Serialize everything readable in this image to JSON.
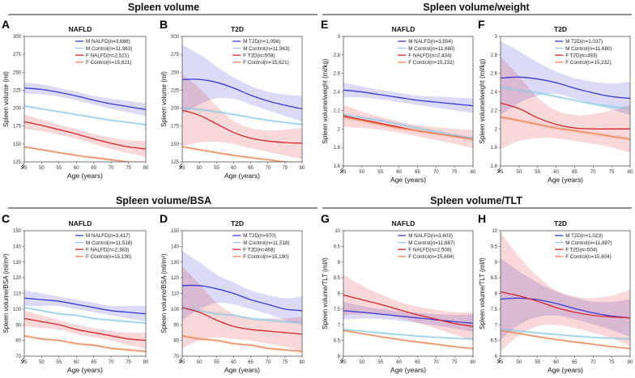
{
  "figure": {
    "section_titles": [
      "Spleen volume",
      "Spleen volume/weight",
      "Spleen volume/BSA",
      "Spleen volume/TLT"
    ],
    "colors": {
      "m_case": "#3a3ad8",
      "m_control": "#8ecde6",
      "f_case": "#d8262b",
      "f_control": "#ee8552"
    }
  },
  "chart_data": [
    {
      "panel": "A",
      "title": "NAFLD",
      "type": "line",
      "xlabel": "Age (years)",
      "ylabel": "Spleen volume (ml)",
      "xlim": [
        45,
        80
      ],
      "ylim": [
        125,
        300
      ],
      "xticks": [
        45,
        50,
        55,
        60,
        65,
        70,
        75,
        80
      ],
      "yticks": [
        125,
        150,
        175,
        200,
        225,
        250,
        275,
        300
      ],
      "x": [
        45,
        50,
        55,
        60,
        65,
        70,
        75,
        80
      ],
      "series": [
        {
          "name": "M NALFD(n=3,668)",
          "color": "#3a3ad8",
          "values": [
            228,
            226,
            222,
            217,
            211,
            206,
            202,
            198
          ],
          "ci": [
            8,
            7,
            6,
            6,
            6,
            7,
            8,
            9
          ]
        },
        {
          "name": "M Control(n=11,963)",
          "color": "#8ecde6",
          "values": [
            203,
            199,
            195,
            191,
            187,
            183,
            180,
            177
          ],
          "ci": [
            3,
            2,
            2,
            2,
            2,
            2,
            2,
            3
          ]
        },
        {
          "name": "F NALFD(n=2,521)",
          "color": "#d8262b",
          "values": [
            181,
            176,
            170,
            164,
            157,
            151,
            146,
            143
          ],
          "ci": [
            10,
            8,
            7,
            7,
            7,
            8,
            9,
            11
          ]
        },
        {
          "name": "F Control(n=15,621)",
          "color": "#ee8552",
          "values": [
            146,
            142,
            138,
            134,
            131,
            128,
            125,
            124
          ],
          "ci": [
            2,
            2,
            2,
            2,
            2,
            2,
            2,
            2
          ]
        }
      ]
    },
    {
      "panel": "B",
      "title": "T2D",
      "type": "line",
      "xlabel": "Age (years)",
      "ylabel": "Spleen volume (ml)",
      "xlim": [
        45,
        80
      ],
      "ylim": [
        125,
        300
      ],
      "xticks": [
        45,
        50,
        55,
        60,
        65,
        70,
        75,
        80
      ],
      "yticks": [
        125,
        150,
        175,
        200,
        225,
        250,
        275,
        300
      ],
      "x": [
        45,
        50,
        55,
        60,
        65,
        70,
        75,
        80
      ],
      "series": [
        {
          "name": "M T2D(n=1,056)",
          "color": "#3a3ad8",
          "values": [
            240,
            240,
            236,
            228,
            218,
            210,
            204,
            199
          ],
          "ci": [
            48,
            35,
            22,
            15,
            13,
            13,
            15,
            18
          ]
        },
        {
          "name": "M Control(n=11,963)",
          "color": "#8ecde6",
          "values": [
            200,
            198,
            195,
            191,
            187,
            183,
            180,
            177
          ],
          "ci": [
            3,
            2,
            2,
            2,
            2,
            2,
            2,
            3
          ]
        },
        {
          "name": "F T2D(n=508)",
          "color": "#d8262b",
          "values": [
            197,
            190,
            178,
            166,
            158,
            154,
            152,
            151
          ],
          "ci": [
            50,
            38,
            25,
            16,
            14,
            15,
            18,
            22
          ]
        },
        {
          "name": "F Control(n=15,621)",
          "color": "#ee8552",
          "values": [
            146,
            142,
            138,
            134,
            131,
            128,
            125,
            124
          ],
          "ci": [
            2,
            2,
            2,
            2,
            2,
            2,
            2,
            2
          ]
        }
      ]
    },
    {
      "panel": "E",
      "title": "NAFLD",
      "type": "line",
      "xlabel": "Age (years)",
      "ylabel": "Spleen volume/weight (ml/kg)",
      "xlim": [
        45,
        80
      ],
      "ylim": [
        1.6,
        3.0
      ],
      "xticks": [
        45,
        50,
        55,
        60,
        65,
        70,
        75,
        80
      ],
      "yticks": [
        1.6,
        1.8,
        2.0,
        2.2,
        2.4,
        2.6,
        2.8,
        3.0
      ],
      "x": [
        45,
        50,
        55,
        60,
        65,
        70,
        75,
        80
      ],
      "series": [
        {
          "name": "M NALFD(n=3,554)",
          "color": "#3a3ad8",
          "values": [
            2.42,
            2.4,
            2.37,
            2.34,
            2.31,
            2.29,
            2.27,
            2.25
          ],
          "ci": [
            0.08,
            0.06,
            0.05,
            0.05,
            0.05,
            0.06,
            0.07,
            0.08
          ]
        },
        {
          "name": "M Control(n=11,680)",
          "color": "#8ecde6",
          "values": [
            2.15,
            2.12,
            2.09,
            2.05,
            2.01,
            1.97,
            1.93,
            1.9
          ],
          "ci": [
            0.02,
            0.02,
            0.02,
            0.02,
            0.02,
            0.02,
            0.02,
            0.02
          ]
        },
        {
          "name": "F NALFD(n=2,434)",
          "color": "#d8262b",
          "values": [
            2.14,
            2.1,
            2.06,
            2.02,
            1.98,
            1.95,
            1.92,
            1.89
          ],
          "ci": [
            0.12,
            0.09,
            0.07,
            0.06,
            0.06,
            0.07,
            0.08,
            0.1
          ]
        },
        {
          "name": "F Control(n=15,232)",
          "color": "#ee8552",
          "values": [
            2.13,
            2.09,
            2.05,
            2.01,
            1.98,
            1.95,
            1.92,
            1.89
          ],
          "ci": [
            0.02,
            0.02,
            0.02,
            0.02,
            0.02,
            0.02,
            0.02,
            0.02
          ]
        }
      ]
    },
    {
      "panel": "F",
      "title": "T2D",
      "type": "line",
      "xlabel": "Age (years)",
      "ylabel": "Spleen volume/weight (ml/kg)",
      "xlim": [
        45,
        80
      ],
      "ylim": [
        1.6,
        3.0
      ],
      "xticks": [
        45,
        50,
        55,
        60,
        65,
        70,
        75,
        80
      ],
      "yticks": [
        1.6,
        1.8,
        2.0,
        2.2,
        2.4,
        2.6,
        2.8,
        3.0
      ],
      "x": [
        45,
        50,
        55,
        60,
        65,
        70,
        75,
        80
      ],
      "series": [
        {
          "name": "M T2D(n=1,037)",
          "color": "#3a3ad8",
          "values": [
            2.55,
            2.56,
            2.54,
            2.5,
            2.44,
            2.39,
            2.35,
            2.33
          ],
          "ci": [
            0.4,
            0.28,
            0.18,
            0.12,
            0.11,
            0.12,
            0.14,
            0.18
          ]
        },
        {
          "name": "M Control(n=11,680)",
          "color": "#8ecde6",
          "values": [
            2.45,
            2.42,
            2.39,
            2.35,
            2.31,
            2.27,
            2.24,
            2.22
          ],
          "ci": [
            0.03,
            0.02,
            0.02,
            0.02,
            0.02,
            0.02,
            0.02,
            0.03
          ]
        },
        {
          "name": "F T2D(n=493)",
          "color": "#d8262b",
          "values": [
            2.28,
            2.22,
            2.12,
            2.05,
            2.01,
            2.0,
            2.0,
            2.0
          ],
          "ci": [
            0.5,
            0.35,
            0.22,
            0.15,
            0.14,
            0.16,
            0.2,
            0.26
          ]
        },
        {
          "name": "F Control(n=15,232)",
          "color": "#ee8552",
          "values": [
            2.13,
            2.09,
            2.05,
            2.01,
            1.98,
            1.95,
            1.92,
            1.89
          ],
          "ci": [
            0.02,
            0.02,
            0.02,
            0.02,
            0.02,
            0.02,
            0.02,
            0.02
          ]
        }
      ]
    },
    {
      "panel": "C",
      "title": "NAFLD",
      "type": "line",
      "xlabel": "Age (years)",
      "ylabel": "Spleen volume/BSA (ml/m²)",
      "xlim": [
        45,
        80
      ],
      "ylim": [
        70,
        150
      ],
      "xticks": [
        45,
        50,
        55,
        60,
        65,
        70,
        75,
        80
      ],
      "yticks": [
        70,
        80,
        90,
        100,
        110,
        120,
        130,
        140,
        150
      ],
      "x": [
        45,
        50,
        55,
        60,
        65,
        70,
        75,
        80
      ],
      "series": [
        {
          "name": "M NALFD(n=3,417)",
          "color": "#3a3ad8",
          "values": [
            107,
            106,
            105,
            103,
            101,
            99,
            98,
            97
          ],
          "ci": [
            5,
            4,
            3,
            3,
            3,
            3,
            4,
            5
          ]
        },
        {
          "name": "M Control(n=11,518)",
          "color": "#8ecde6",
          "values": [
            101,
            99,
            97,
            96,
            94,
            93,
            92,
            91
          ],
          "ci": [
            1,
            1,
            1,
            1,
            1,
            1,
            1,
            1
          ]
        },
        {
          "name": "F NALFD(n=2,383)",
          "color": "#d8262b",
          "values": [
            94,
            92,
            90,
            87,
            85,
            83,
            81,
            80
          ],
          "ci": [
            5,
            4,
            3,
            3,
            3,
            3,
            4,
            5
          ]
        },
        {
          "name": "F Control(n=15,190)",
          "color": "#ee8552",
          "values": [
            83,
            81,
            80,
            78,
            77,
            75,
            74,
            73
          ],
          "ci": [
            1,
            1,
            1,
            1,
            1,
            1,
            1,
            1
          ]
        }
      ]
    },
    {
      "panel": "D",
      "title": "T2D",
      "type": "line",
      "xlabel": "Age (years)",
      "ylabel": "Spleen volume/BSA (ml/m²)",
      "xlim": [
        45,
        80
      ],
      "ylim": [
        70,
        150
      ],
      "xticks": [
        45,
        50,
        55,
        60,
        65,
        70,
        75,
        80
      ],
      "yticks": [
        70,
        80,
        90,
        100,
        110,
        120,
        130,
        140,
        150
      ],
      "x": [
        45,
        50,
        55,
        60,
        65,
        70,
        75,
        80
      ],
      "series": [
        {
          "name": "M T2D(n=970)",
          "color": "#3a3ad8",
          "values": [
            115,
            115,
            113,
            110,
            106,
            103,
            100,
            99
          ],
          "ci": [
            22,
            15,
            9,
            7,
            6,
            6,
            7,
            9
          ]
        },
        {
          "name": "M Control(n=11,518)",
          "color": "#8ecde6",
          "values": [
            101,
            99,
            97,
            96,
            94,
            93,
            92,
            91
          ],
          "ci": [
            1,
            1,
            1,
            1,
            1,
            1,
            1,
            1
          ]
        },
        {
          "name": "F T2D(n=468)",
          "color": "#d8262b",
          "values": [
            101,
            98,
            93,
            89,
            87,
            86,
            85,
            84
          ],
          "ci": [
            26,
            18,
            11,
            8,
            7,
            8,
            9,
            11
          ]
        },
        {
          "name": "F Control(n=15,190)",
          "color": "#ee8552",
          "values": [
            83,
            81,
            80,
            78,
            77,
            75,
            74,
            73
          ],
          "ci": [
            1,
            1,
            1,
            1,
            1,
            1,
            1,
            1
          ]
        }
      ]
    },
    {
      "panel": "G",
      "title": "NAFLD",
      "type": "line",
      "xlabel": "Age (years)",
      "ylabel": "Spleen volume/TLT (ml/l)",
      "xlim": [
        45,
        80
      ],
      "ylim": [
        6.0,
        10.0
      ],
      "xticks": [
        45,
        50,
        55,
        60,
        65,
        70,
        75,
        80
      ],
      "yticks": [
        6.0,
        6.5,
        7.0,
        7.5,
        8.0,
        8.5,
        9.0,
        9.5,
        10.0
      ],
      "x": [
        45,
        50,
        55,
        60,
        65,
        70,
        75,
        80
      ],
      "series": [
        {
          "name": "M NALFD(n=3,603)",
          "color": "#3a3ad8",
          "values": [
            7.45,
            7.4,
            7.34,
            7.28,
            7.22,
            7.16,
            7.1,
            7.05
          ],
          "ci": [
            0.28,
            0.2,
            0.16,
            0.15,
            0.16,
            0.18,
            0.22,
            0.28
          ]
        },
        {
          "name": "M Control(n=11,887)",
          "color": "#8ecde6",
          "values": [
            6.85,
            6.8,
            6.74,
            6.69,
            6.64,
            6.6,
            6.57,
            6.55
          ],
          "ci": [
            0.05,
            0.04,
            0.04,
            0.04,
            0.04,
            0.04,
            0.04,
            0.05
          ]
        },
        {
          "name": "F NALFD(n=2,508)",
          "color": "#d8262b",
          "values": [
            7.95,
            7.8,
            7.65,
            7.48,
            7.32,
            7.18,
            7.04,
            6.95
          ],
          "ci": [
            0.65,
            0.45,
            0.32,
            0.26,
            0.26,
            0.3,
            0.36,
            0.45
          ]
        },
        {
          "name": "F Control(n=15,604)",
          "color": "#ee8552",
          "values": [
            6.82,
            6.72,
            6.62,
            6.53,
            6.45,
            6.38,
            6.3,
            6.24
          ],
          "ci": [
            0.05,
            0.04,
            0.04,
            0.04,
            0.04,
            0.04,
            0.04,
            0.05
          ]
        }
      ]
    },
    {
      "panel": "H",
      "title": "T2D",
      "type": "line",
      "xlabel": "Age (years)",
      "ylabel": "Spleen volume/TLT (ml/l)",
      "xlim": [
        45,
        80
      ],
      "ylim": [
        6.0,
        10.0
      ],
      "xticks": [
        45,
        50,
        55,
        60,
        65,
        70,
        75,
        80
      ],
      "yticks": [
        6.0,
        6.5,
        7.0,
        7.5,
        8.0,
        8.5,
        9.0,
        9.5,
        10.0
      ],
      "x": [
        45,
        50,
        55,
        60,
        65,
        70,
        75,
        80
      ],
      "series": [
        {
          "name": "M T2D(n=1,023)",
          "color": "#3a3ad8",
          "values": [
            7.82,
            7.85,
            7.8,
            7.68,
            7.52,
            7.38,
            7.28,
            7.22
          ],
          "ci": [
            1.3,
            0.85,
            0.55,
            0.38,
            0.34,
            0.36,
            0.45,
            0.6
          ]
        },
        {
          "name": "M Control(n=11,887)",
          "color": "#8ecde6",
          "values": [
            6.85,
            6.8,
            6.74,
            6.69,
            6.64,
            6.6,
            6.57,
            6.55
          ],
          "ci": [
            0.05,
            0.04,
            0.04,
            0.04,
            0.04,
            0.04,
            0.04,
            0.05
          ]
        },
        {
          "name": "F T2D(n=504)",
          "color": "#d8262b",
          "values": [
            8.05,
            7.92,
            7.75,
            7.55,
            7.4,
            7.3,
            7.25,
            7.22
          ],
          "ci": [
            1.9,
            1.25,
            0.8,
            0.55,
            0.5,
            0.55,
            0.68,
            0.9
          ]
        },
        {
          "name": "F Control(n=15,604)",
          "color": "#ee8552",
          "values": [
            6.82,
            6.72,
            6.62,
            6.53,
            6.45,
            6.38,
            6.3,
            6.24
          ],
          "ci": [
            0.05,
            0.04,
            0.04,
            0.04,
            0.04,
            0.04,
            0.04,
            0.05
          ]
        }
      ]
    }
  ]
}
